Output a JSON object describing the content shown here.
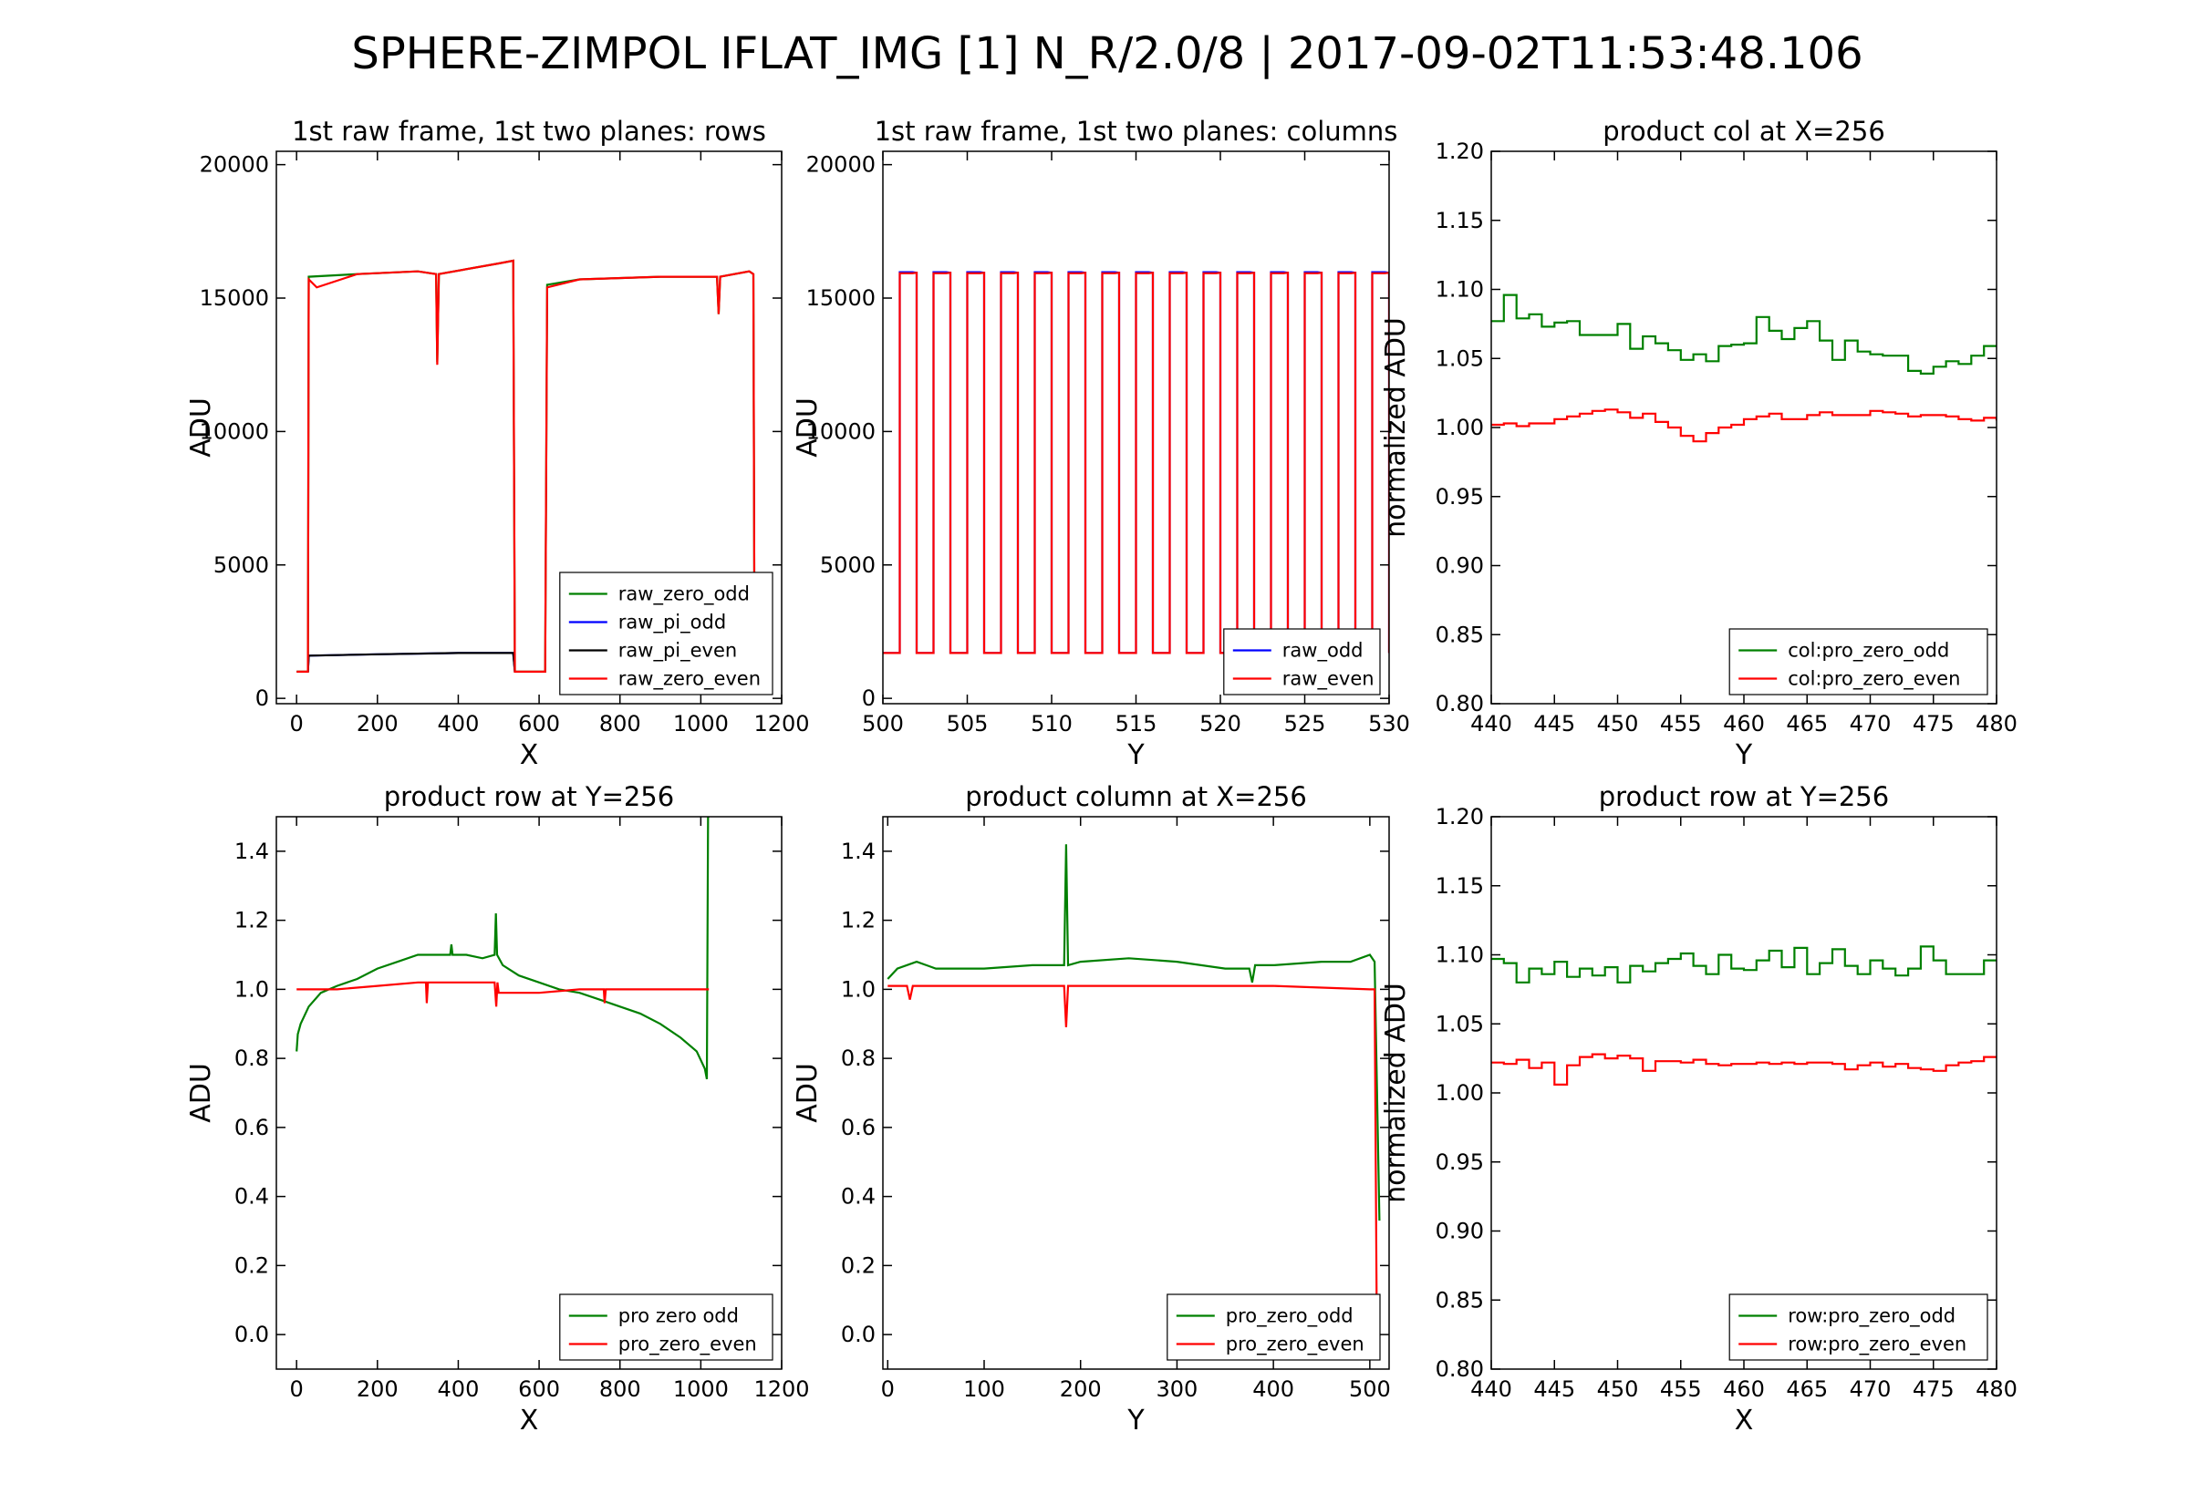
{
  "figure": {
    "suptitle": "SPHERE-ZIMPOL IFLAT_IMG [1] N_R/2.0/8  |  2017-09-02T11:53:48.106"
  },
  "chart_data": [
    {
      "id": "raw-rows",
      "type": "line",
      "title": "1st raw frame, 1st two planes: rows",
      "xlabel": "X",
      "ylabel": "ADU",
      "xlim": [
        -50,
        1200
      ],
      "ylim": [
        -200,
        20500
      ],
      "xticks": [
        0,
        200,
        400,
        600,
        800,
        1000,
        1200
      ],
      "yticks": [
        0,
        5000,
        10000,
        15000,
        20000
      ],
      "legend_position": "lower-right",
      "series": [
        {
          "name": "raw_zero_odd",
          "color": "#008000",
          "x": [
            0,
            28,
            30,
            150,
            300,
            345,
            348,
            352,
            500,
            536,
            540,
            615,
            620,
            700,
            900,
            1040,
            1044,
            1048,
            1120,
            1130,
            1133,
            1140
          ],
          "y": [
            1000,
            1000,
            15800,
            15900,
            16000,
            15900,
            12600,
            15900,
            16300,
            16400,
            1000,
            1000,
            15500,
            15700,
            15800,
            15800,
            14400,
            15800,
            16000,
            15900,
            1000,
            1000
          ]
        },
        {
          "name": "raw_pi_odd",
          "color": "#0000ff",
          "x": [
            28,
            30,
            200,
            400,
            536,
            540
          ],
          "y": [
            1000,
            1600,
            1650,
            1700,
            1700,
            1000
          ]
        },
        {
          "name": "raw_pi_even",
          "color": "#000000",
          "x": [
            28,
            30,
            200,
            400,
            536,
            540
          ],
          "y": [
            1000,
            1600,
            1650,
            1700,
            1700,
            1000
          ]
        },
        {
          "name": "raw_zero_even",
          "color": "#ff0000",
          "x": [
            0,
            28,
            30,
            50,
            150,
            300,
            345,
            348,
            352,
            500,
            536,
            540,
            615,
            620,
            700,
            900,
            1040,
            1044,
            1048,
            1120,
            1130,
            1133,
            1140
          ],
          "y": [
            1000,
            1000,
            15700,
            15400,
            15900,
            16000,
            15900,
            12500,
            15900,
            16300,
            16400,
            1000,
            1000,
            15400,
            15700,
            15800,
            15800,
            14400,
            15800,
            16000,
            15900,
            1000,
            1000
          ]
        }
      ]
    },
    {
      "id": "raw-columns",
      "type": "line",
      "title": "1st raw frame, 1st two planes: columns",
      "xlabel": "Y",
      "ylabel": "ADU",
      "xlim": [
        500,
        530
      ],
      "ylim": [
        -200,
        20500
      ],
      "xticks": [
        500,
        505,
        510,
        515,
        520,
        525,
        530
      ],
      "yticks": [
        0,
        5000,
        10000,
        15000,
        20000
      ],
      "legend_position": "lower-right",
      "square_wave": {
        "period": 2,
        "high_from_phase": 1,
        "low_value": 1700,
        "high_value": 15950
      },
      "series": [
        {
          "name": "raw_odd",
          "color": "#0000ff"
        },
        {
          "name": "raw_even",
          "color": "#ff0000"
        }
      ]
    },
    {
      "id": "product-col-zoom",
      "type": "line",
      "step": true,
      "title": "product col at X=256",
      "xlabel": "Y",
      "ylabel": "normalized ADU",
      "xlim": [
        440,
        480
      ],
      "ylim": [
        0.8,
        1.2
      ],
      "xticks": [
        440,
        445,
        450,
        455,
        460,
        465,
        470,
        475,
        480
      ],
      "yticks": [
        0.8,
        0.85,
        0.9,
        0.95,
        1.0,
        1.05,
        1.1,
        1.15,
        1.2
      ],
      "legend_position": "lower-right",
      "x": [
        440,
        441,
        442,
        443,
        444,
        445,
        446,
        447,
        448,
        449,
        450,
        451,
        452,
        453,
        454,
        455,
        456,
        457,
        458,
        459,
        460,
        461,
        462,
        463,
        464,
        465,
        466,
        467,
        468,
        469,
        470,
        471,
        472,
        473,
        474,
        475,
        476,
        477,
        478,
        479,
        480
      ],
      "series": [
        {
          "name": "col:pro_zero_odd",
          "color": "#008000",
          "y": [
            1.077,
            1.096,
            1.079,
            1.082,
            1.073,
            1.076,
            1.077,
            1.067,
            1.067,
            1.067,
            1.075,
            1.057,
            1.066,
            1.061,
            1.056,
            1.049,
            1.053,
            1.048,
            1.059,
            1.06,
            1.061,
            1.08,
            1.07,
            1.064,
            1.072,
            1.077,
            1.063,
            1.049,
            1.063,
            1.055,
            1.053,
            1.052,
            1.052,
            1.041,
            1.039,
            1.044,
            1.048,
            1.046,
            1.052,
            1.059,
            1.059
          ]
        },
        {
          "name": "col:pro_zero_even",
          "color": "#ff0000",
          "y": [
            1.002,
            1.003,
            1.001,
            1.003,
            1.003,
            1.006,
            1.008,
            1.01,
            1.012,
            1.013,
            1.011,
            1.007,
            1.01,
            1.004,
            1.0,
            0.994,
            0.99,
            0.996,
            1.0,
            1.002,
            1.006,
            1.008,
            1.01,
            1.006,
            1.006,
            1.009,
            1.011,
            1.009,
            1.009,
            1.009,
            1.012,
            1.011,
            1.01,
            1.008,
            1.009,
            1.009,
            1.008,
            1.006,
            1.005,
            1.007,
            1.005
          ]
        }
      ]
    },
    {
      "id": "product-row",
      "type": "line",
      "title": "product row at Y=256",
      "xlabel": "X",
      "ylabel": "ADU",
      "xlim": [
        -50,
        1200
      ],
      "ylim": [
        -0.1,
        1.5
      ],
      "xticks": [
        0,
        200,
        400,
        600,
        800,
        1000,
        1200
      ],
      "yticks": [
        0.0,
        0.2,
        0.4,
        0.6,
        0.8,
        1.0,
        1.2,
        1.4
      ],
      "legend_position": "lower-right",
      "series": [
        {
          "name": "pro zero odd",
          "color": "#008000",
          "x": [
            0,
            3,
            10,
            30,
            60,
            100,
            150,
            200,
            250,
            300,
            350,
            380,
            383,
            386,
            420,
            460,
            490,
            493,
            496,
            510,
            550,
            600,
            650,
            700,
            750,
            800,
            850,
            900,
            950,
            990,
            1010,
            1015,
            1018,
            1021
          ],
          "y": [
            0.82,
            0.87,
            0.9,
            0.95,
            0.99,
            1.01,
            1.03,
            1.06,
            1.08,
            1.1,
            1.1,
            1.1,
            1.13,
            1.1,
            1.1,
            1.09,
            1.1,
            1.22,
            1.1,
            1.07,
            1.04,
            1.02,
            1.0,
            0.99,
            0.97,
            0.95,
            0.93,
            0.9,
            0.86,
            0.82,
            0.77,
            0.74,
            1.5,
            1.5
          ]
        },
        {
          "name": "pro_zero_even",
          "color": "#ff0000",
          "x": [
            0,
            100,
            200,
            300,
            320,
            322,
            325,
            400,
            490,
            494,
            497,
            500,
            600,
            700,
            760,
            762,
            765,
            900,
            1000,
            1020
          ],
          "y": [
            1.0,
            1.0,
            1.01,
            1.02,
            1.02,
            0.96,
            1.02,
            1.02,
            1.02,
            0.95,
            1.02,
            0.99,
            0.99,
            1.0,
            1.0,
            0.96,
            1.0,
            1.0,
            1.0,
            1.0
          ]
        }
      ]
    },
    {
      "id": "product-column",
      "type": "line",
      "title": "product column at X=256",
      "xlabel": "Y",
      "ylabel": "ADU",
      "xlim": [
        -5,
        520
      ],
      "ylim": [
        -0.1,
        1.5
      ],
      "xticks": [
        0,
        100,
        200,
        300,
        400,
        500
      ],
      "yticks": [
        0.0,
        0.2,
        0.4,
        0.6,
        0.8,
        1.0,
        1.2,
        1.4
      ],
      "legend_position": "lower-right",
      "series": [
        {
          "name": "pro_zero_odd",
          "color": "#008000",
          "x": [
            0,
            10,
            30,
            50,
            100,
            150,
            183,
            185,
            187,
            200,
            250,
            300,
            350,
            375,
            378,
            381,
            400,
            450,
            480,
            500,
            505,
            510
          ],
          "y": [
            1.03,
            1.06,
            1.08,
            1.06,
            1.06,
            1.07,
            1.07,
            1.42,
            1.07,
            1.08,
            1.09,
            1.08,
            1.06,
            1.06,
            1.02,
            1.07,
            1.07,
            1.08,
            1.08,
            1.1,
            1.08,
            0.33
          ]
        },
        {
          "name": "pro_zero_even",
          "color": "#ff0000",
          "x": [
            0,
            20,
            23,
            26,
            100,
            183,
            185,
            187,
            300,
            400,
            500,
            505,
            507,
            510
          ],
          "y": [
            1.01,
            1.01,
            0.97,
            1.01,
            1.01,
            1.01,
            0.89,
            1.01,
            1.01,
            1.01,
            1.0,
            1.0,
            0.11,
            0.11
          ]
        }
      ]
    },
    {
      "id": "product-row-zoom",
      "type": "line",
      "step": true,
      "title": "product row at Y=256",
      "xlabel": "X",
      "ylabel": "normalized ADU",
      "xlim": [
        440,
        480
      ],
      "ylim": [
        0.8,
        1.2
      ],
      "xticks": [
        440,
        445,
        450,
        455,
        460,
        465,
        470,
        475,
        480
      ],
      "yticks": [
        0.8,
        0.85,
        0.9,
        0.95,
        1.0,
        1.05,
        1.1,
        1.15,
        1.2
      ],
      "legend_position": "lower-right",
      "x": [
        440,
        441,
        442,
        443,
        444,
        445,
        446,
        447,
        448,
        449,
        450,
        451,
        452,
        453,
        454,
        455,
        456,
        457,
        458,
        459,
        460,
        461,
        462,
        463,
        464,
        465,
        466,
        467,
        468,
        469,
        470,
        471,
        472,
        473,
        474,
        475,
        476,
        477,
        478,
        479,
        480
      ],
      "series": [
        {
          "name": "row:pro_zero_odd",
          "color": "#008000",
          "y": [
            1.097,
            1.094,
            1.08,
            1.09,
            1.086,
            1.095,
            1.084,
            1.09,
            1.085,
            1.091,
            1.08,
            1.092,
            1.088,
            1.094,
            1.097,
            1.101,
            1.092,
            1.086,
            1.1,
            1.09,
            1.089,
            1.096,
            1.103,
            1.091,
            1.105,
            1.086,
            1.094,
            1.104,
            1.092,
            1.086,
            1.096,
            1.09,
            1.085,
            1.09,
            1.106,
            1.096,
            1.086,
            1.086,
            1.086,
            1.096,
            1.096
          ]
        },
        {
          "name": "row:pro_zero_even",
          "color": "#ff0000",
          "y": [
            1.022,
            1.021,
            1.024,
            1.018,
            1.022,
            1.006,
            1.02,
            1.026,
            1.028,
            1.025,
            1.027,
            1.025,
            1.016,
            1.023,
            1.023,
            1.022,
            1.024,
            1.021,
            1.02,
            1.021,
            1.021,
            1.022,
            1.021,
            1.022,
            1.021,
            1.022,
            1.022,
            1.021,
            1.017,
            1.02,
            1.022,
            1.019,
            1.021,
            1.018,
            1.017,
            1.016,
            1.02,
            1.022,
            1.023,
            1.026,
            1.026
          ]
        }
      ]
    }
  ]
}
